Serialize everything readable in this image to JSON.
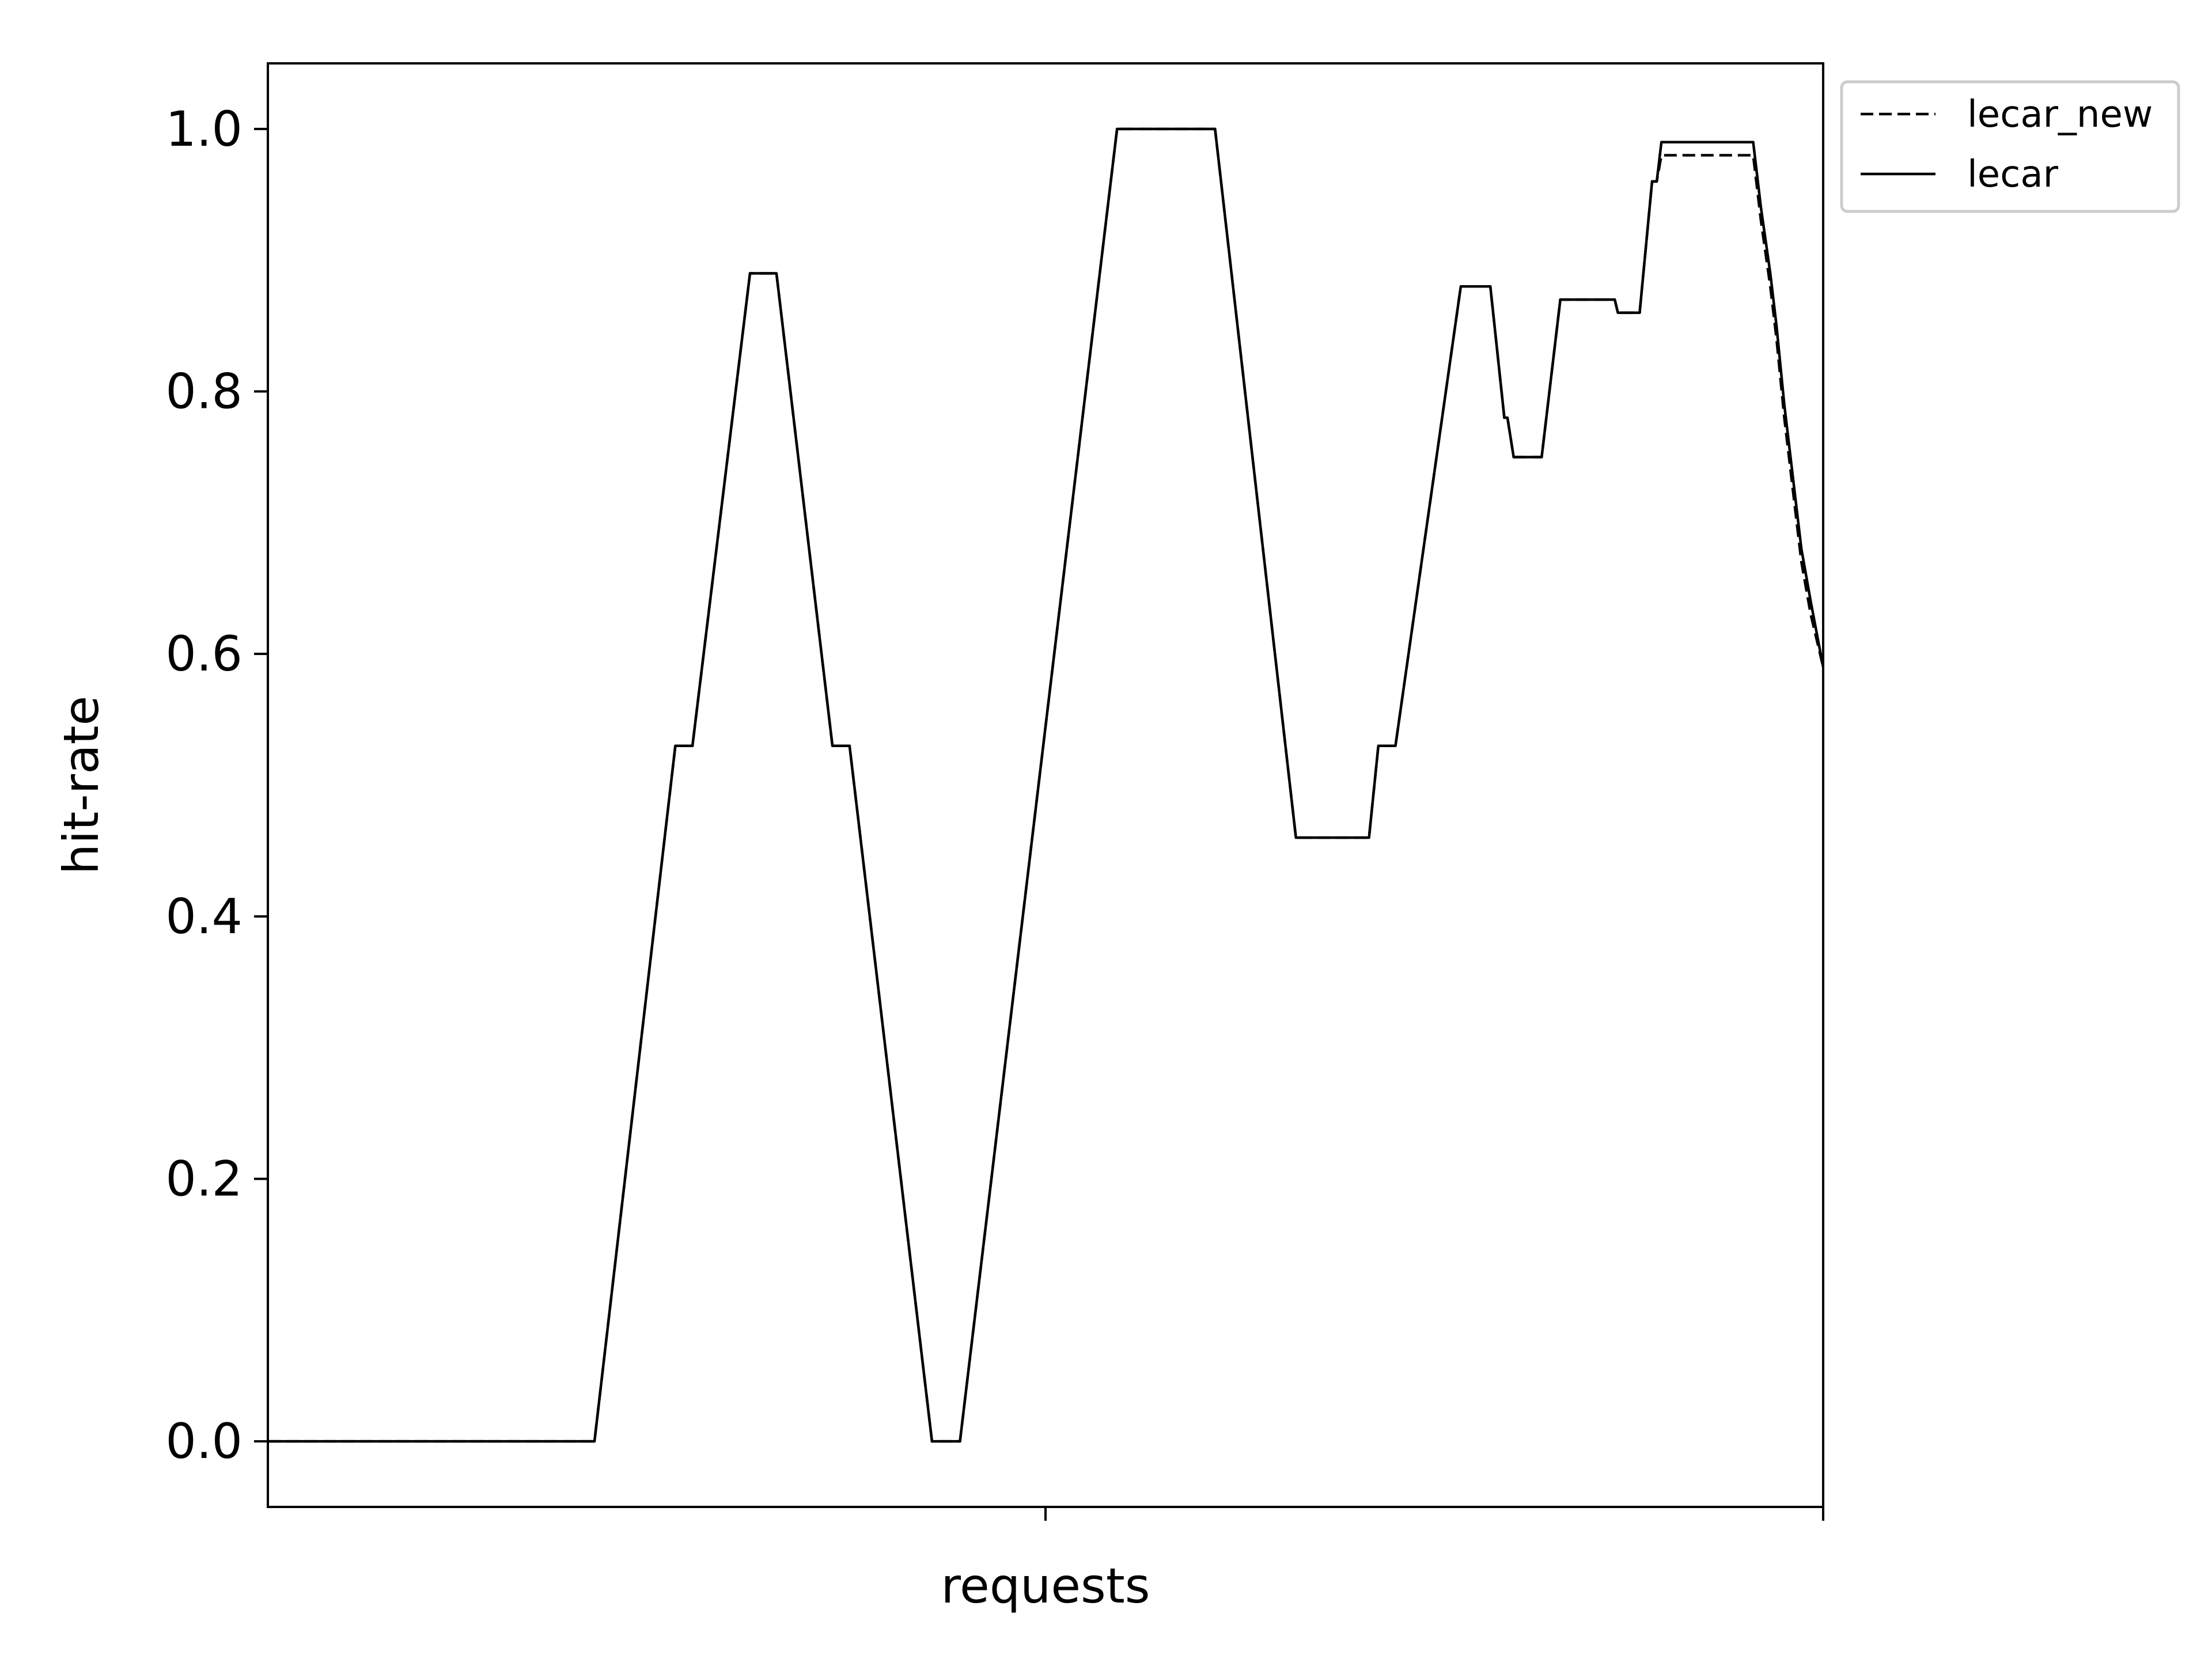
{
  "chart_data": {
    "type": "line",
    "title": "",
    "xlabel": "requests",
    "ylabel": "hit-rate",
    "xlim": [
      0,
      100
    ],
    "ylim": [
      -0.05,
      1.05
    ],
    "yticks": [
      "0.0",
      "0.2",
      "0.4",
      "0.6",
      "0.8",
      "1.0"
    ],
    "ytick_values": [
      0.0,
      0.2,
      0.4,
      0.6,
      0.8,
      1.0
    ],
    "xtick_values": [
      50,
      100
    ],
    "grid": false,
    "legend_position": "outside-top-right",
    "series": [
      {
        "name": "lecar_new",
        "style": "dashed",
        "color": "#000000",
        "points": [
          [
            0,
            0.0
          ],
          [
            21,
            0.0
          ],
          [
            26.2,
            0.53
          ],
          [
            27.3,
            0.53
          ],
          [
            31.0,
            0.89
          ],
          [
            32.7,
            0.89
          ],
          [
            36.3,
            0.53
          ],
          [
            37.4,
            0.53
          ],
          [
            42.7,
            0.0
          ],
          [
            44.5,
            0.0
          ],
          [
            54.6,
            1.0
          ],
          [
            60.9,
            1.0
          ],
          [
            66.1,
            0.46
          ],
          [
            70.8,
            0.46
          ],
          [
            71.4,
            0.53
          ],
          [
            72.5,
            0.53
          ],
          [
            76.7,
            0.88
          ],
          [
            78.6,
            0.88
          ],
          [
            79.5,
            0.78
          ],
          [
            79.7,
            0.78
          ],
          [
            80.1,
            0.75
          ],
          [
            81.9,
            0.75
          ],
          [
            83.1,
            0.87
          ],
          [
            86.6,
            0.87
          ],
          [
            86.8,
            0.86
          ],
          [
            88.2,
            0.86
          ],
          [
            89.0,
            0.96
          ],
          [
            89.3,
            0.96
          ],
          [
            89.6,
            0.98
          ],
          [
            95.5,
            0.98
          ],
          [
            96.0,
            0.93
          ],
          [
            96.6,
            0.88
          ],
          [
            97.0,
            0.84
          ],
          [
            97.5,
            0.78
          ],
          [
            98.0,
            0.73
          ],
          [
            98.6,
            0.67
          ],
          [
            99.2,
            0.63
          ],
          [
            100,
            0.59
          ]
        ]
      },
      {
        "name": "lecar",
        "style": "solid",
        "color": "#000000",
        "points": [
          [
            0,
            0.0
          ],
          [
            21,
            0.0
          ],
          [
            26.2,
            0.53
          ],
          [
            27.3,
            0.53
          ],
          [
            31.0,
            0.89
          ],
          [
            32.7,
            0.89
          ],
          [
            36.3,
            0.53
          ],
          [
            37.4,
            0.53
          ],
          [
            42.7,
            0.0
          ],
          [
            44.5,
            0.0
          ],
          [
            54.6,
            1.0
          ],
          [
            60.9,
            1.0
          ],
          [
            66.1,
            0.46
          ],
          [
            70.8,
            0.46
          ],
          [
            71.4,
            0.53
          ],
          [
            72.5,
            0.53
          ],
          [
            76.7,
            0.88
          ],
          [
            78.6,
            0.88
          ],
          [
            79.5,
            0.78
          ],
          [
            79.7,
            0.78
          ],
          [
            80.1,
            0.75
          ],
          [
            81.9,
            0.75
          ],
          [
            83.1,
            0.87
          ],
          [
            86.6,
            0.87
          ],
          [
            86.8,
            0.86
          ],
          [
            88.2,
            0.86
          ],
          [
            89.0,
            0.96
          ],
          [
            89.3,
            0.96
          ],
          [
            89.6,
            0.99
          ],
          [
            95.5,
            0.99
          ],
          [
            96.0,
            0.94
          ],
          [
            96.6,
            0.89
          ],
          [
            97.0,
            0.85
          ],
          [
            97.5,
            0.79
          ],
          [
            98.0,
            0.74
          ],
          [
            98.6,
            0.68
          ],
          [
            99.2,
            0.64
          ],
          [
            100,
            0.59
          ]
        ]
      }
    ]
  }
}
